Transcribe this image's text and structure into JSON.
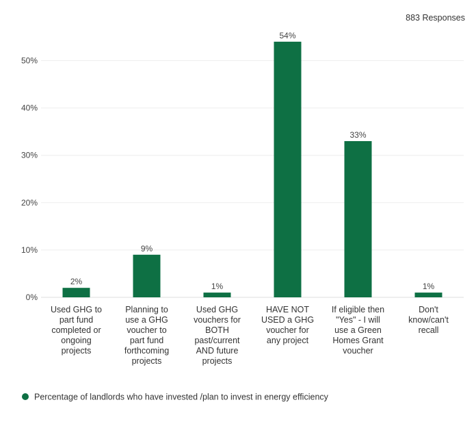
{
  "responses_label": "883 Responses",
  "chart_data": {
    "type": "bar",
    "categories": [
      [
        "Used GHG to",
        "part fund",
        "completed or",
        "ongoing",
        "projects"
      ],
      [
        "Planning to",
        "use a GHG",
        "voucher to",
        "part fund",
        "forthcoming",
        "projects"
      ],
      [
        "Used GHG",
        "vouchers for",
        "BOTH",
        "past/current",
        "AND future",
        "projects"
      ],
      [
        "HAVE NOT",
        "USED a GHG",
        "voucher for",
        "any project"
      ],
      [
        "If eligible then",
        "\"Yes\" - I will",
        "use a Green",
        "Homes Grant",
        "voucher"
      ],
      [
        "Don't",
        "know/can't",
        "recall"
      ]
    ],
    "values": [
      2,
      9,
      1,
      54,
      33,
      1
    ],
    "data_labels": [
      "2%",
      "9%",
      "1%",
      "54%",
      "33%",
      "1%"
    ],
    "ylim": [
      0,
      56
    ],
    "y_ticks": [
      0,
      10,
      20,
      30,
      40,
      50
    ],
    "y_tick_labels": [
      "0%",
      "10%",
      "20%",
      "30%",
      "40%",
      "50%"
    ],
    "series": [
      {
        "name": "Percentage of landlords who have invested /plan to invest in energy efficiency",
        "values": [
          2,
          9,
          1,
          54,
          33,
          1
        ]
      }
    ],
    "legend_position": "bottom-left",
    "grid": true,
    "bar_color": "#0e7044"
  }
}
